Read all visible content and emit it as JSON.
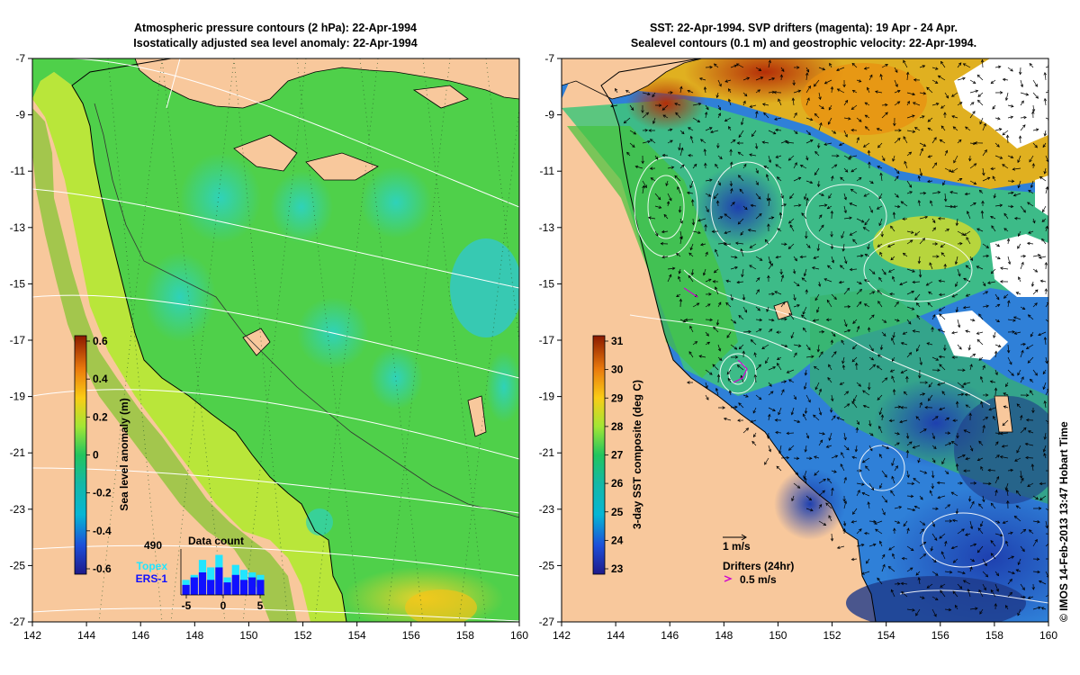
{
  "left_panel": {
    "title_line1": "Atmospheric pressure contours (2 hPa): 22-Apr-1994",
    "title_line2": "Isostatically adjusted sea level anomaly: 22-Apr-1994",
    "x_ticks": [
      "142",
      "144",
      "146",
      "148",
      "150",
      "152",
      "154",
      "156",
      "158",
      "160"
    ],
    "y_ticks": [
      "-7",
      "-9",
      "-11",
      "-13",
      "-15",
      "-17",
      "-19",
      "-21",
      "-23",
      "-25",
      "-27"
    ],
    "colorbar": {
      "label": "Sea level anomaly (m)",
      "ticks": [
        "0.6",
        "0.4",
        "0.2",
        "0",
        "-0.2",
        "-0.4",
        "-0.6"
      ],
      "colors": [
        "#8b1a00",
        "#c2410c",
        "#f59e0b",
        "#facc15",
        "#a3e635",
        "#22c55e",
        "#14b8a6",
        "#06b6d4",
        "#2563eb",
        "#1e3a8a"
      ]
    },
    "data_count": {
      "title": "Data count",
      "max_label": "490",
      "x_ticks": [
        "-5",
        "0",
        "5"
      ],
      "legend_topex": "Topex",
      "legend_ers": "ERS-1",
      "topex_color": "#22e5ff",
      "ers_color": "#1010ff",
      "topex": [
        30,
        40,
        70,
        55,
        80,
        35,
        60,
        50,
        45,
        40
      ],
      "ers": [
        20,
        35,
        45,
        30,
        55,
        25,
        40,
        30,
        35,
        30
      ]
    }
  },
  "right_panel": {
    "title_line1": "SST: 22-Apr-1994. SVP drifters (magenta): 19 Apr - 24 Apr.",
    "title_line2": "Sealevel contours (0.1 m) and geostrophic velocity: 22-Apr-1994.",
    "x_ticks": [
      "142",
      "144",
      "146",
      "148",
      "150",
      "152",
      "154",
      "156",
      "158",
      "160"
    ],
    "y_ticks": [
      "-7",
      "-9",
      "-11",
      "-13",
      "-15",
      "-17",
      "-19",
      "-21",
      "-23",
      "-25",
      "-27"
    ],
    "colorbar": {
      "label": "3-day SST composite (deg C)",
      "ticks": [
        "31",
        "30",
        "29",
        "28",
        "27",
        "26",
        "25",
        "24",
        "23"
      ],
      "colors": [
        "#8b1a00",
        "#c2410c",
        "#f59e0b",
        "#facc15",
        "#a3e635",
        "#22c55e",
        "#14b8a6",
        "#06b6d4",
        "#2563eb",
        "#1e3a8a"
      ]
    },
    "velocity_scale_label": "1 m/s",
    "drifters_label": "Drifters (24hr)",
    "drifters_scale_label": "0.5 m/s"
  },
  "copyright": "© IMOS 14-Feb-2013 13:47 Hobart Time",
  "land_color": "#f8c89c",
  "sea_green": "#3ed13e"
}
